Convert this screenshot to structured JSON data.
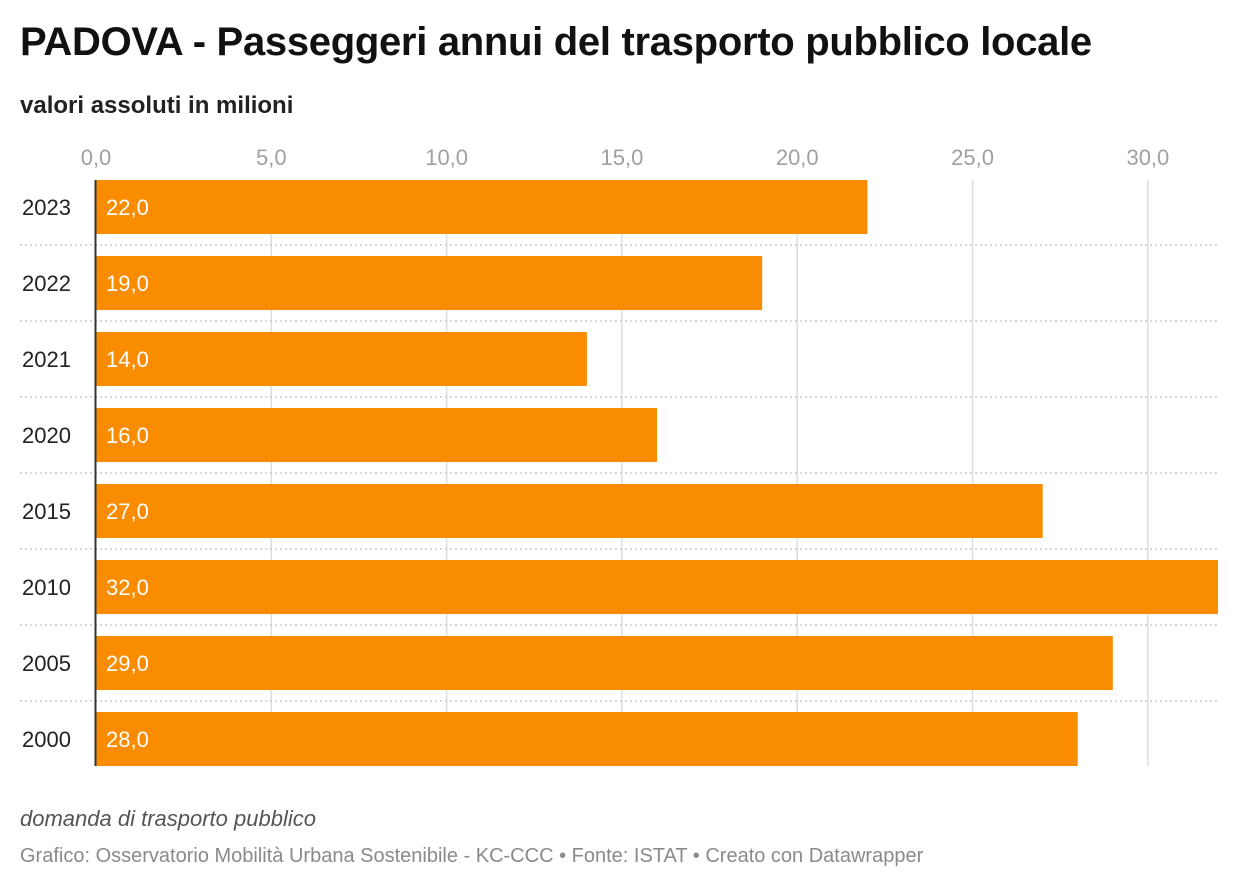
{
  "header": {
    "title": "PADOVA - Passeggeri annui del trasporto pubblico locale",
    "subtitle": "valori assoluti in milioni"
  },
  "footer": {
    "note": "domanda di trasporto pubblico",
    "credits": "Grafico: Osservatorio Mobilità Urbana Sostenibile - KC-CCC • Fonte: ISTAT • Creato con Datawrapper"
  },
  "colors": {
    "bar": "#f98c00",
    "grid": "#dcdcdc",
    "separator": "#c8c8c8",
    "axis": "#333333",
    "tick_text": "#a0a0a0",
    "label_text": "#ffffff",
    "category_text": "#222222"
  },
  "chart_data": {
    "type": "bar",
    "orientation": "horizontal",
    "title": "PADOVA - Passeggeri annui del trasporto pubblico locale",
    "subtitle": "valori assoluti in milioni",
    "categories": [
      "2023",
      "2022",
      "2021",
      "2020",
      "2015",
      "2010",
      "2005",
      "2000"
    ],
    "values": [
      22.0,
      19.0,
      14.0,
      16.0,
      27.0,
      32.0,
      29.0,
      28.0
    ],
    "value_labels": [
      "22,0",
      "19,0",
      "14,0",
      "16,0",
      "27,0",
      "32,0",
      "29,0",
      "28,0"
    ],
    "xlim": [
      0,
      32
    ],
    "x_ticks": [
      0,
      5,
      10,
      15,
      20,
      25,
      30
    ],
    "x_tick_labels": [
      "0,0",
      "5,0",
      "10,0",
      "15,0",
      "20,0",
      "25,0",
      "30,0"
    ],
    "x_axis_position": "top",
    "grid": true,
    "legend": "none"
  }
}
